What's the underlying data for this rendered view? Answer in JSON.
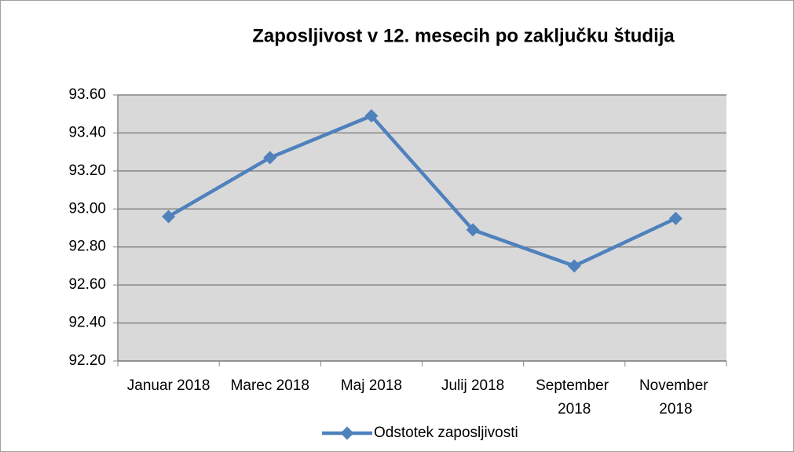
{
  "chart_data": {
    "type": "line",
    "title": "Zaposljivost v 12. mesecih po zaključku študija",
    "categories": [
      "Januar 2018",
      "Marec 2018",
      "Maj 2018",
      "Julij 2018",
      "September 2018",
      "November 2018"
    ],
    "series": [
      {
        "name": "Odstotek zaposljivosti",
        "color": "#4f81bd",
        "values": [
          92.96,
          93.27,
          93.49,
          92.89,
          92.7,
          92.95
        ]
      }
    ],
    "ylim": [
      92.2,
      93.6
    ],
    "yticks": [
      {
        "value": 92.2,
        "label": "92.20"
      },
      {
        "value": 92.4,
        "label": "92.40"
      },
      {
        "value": 92.6,
        "label": "92.60"
      },
      {
        "value": 92.8,
        "label": "92.80"
      },
      {
        "value": 93.0,
        "label": "93.00"
      },
      {
        "value": 93.2,
        "label": "93.20"
      },
      {
        "value": 93.4,
        "label": "93.40"
      },
      {
        "value": 93.6,
        "label": "93.60"
      }
    ],
    "grid": true,
    "legend": "bottom"
  }
}
